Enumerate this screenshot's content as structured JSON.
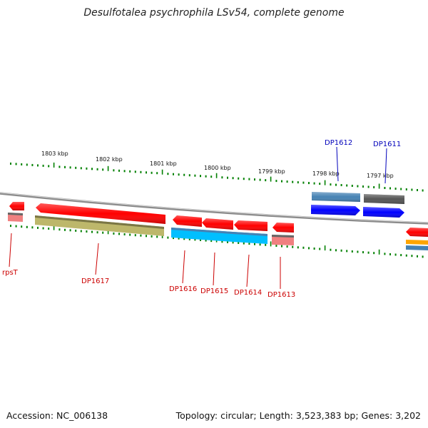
{
  "title": "Desulfotalea psychrophila LSv54, complete genome",
  "accession_text": "Accession: NC_006138",
  "topology_text": "Topology: circular; Length: 3,523,383 bp; Genes: 3,202",
  "colors": {
    "red": "#ff0000",
    "pink": "#f08080",
    "olive": "#bdb76b",
    "cyan": "#00bfff",
    "steel": "#4682b4",
    "blue": "#0000ff",
    "gray": "#555555",
    "orange": "#ffa500",
    "tick_green": "#008000",
    "label_red": "#cc0000",
    "label_blue": "#0000bb"
  },
  "kbp_labels": [
    "1803 kbp",
    "1802 kbp",
    "1801 kbp",
    "1800 kbp",
    "1799 kbp",
    "1798 kbp",
    "1797 kbp"
  ],
  "gene_labels": {
    "rpsT": "rpsT",
    "DP1617": "DP1617",
    "DP1616": "DP1616",
    "DP1615": "DP1615",
    "DP1614": "DP1614",
    "DP1613": "DP1613",
    "DP1612": "DP1612",
    "DP1611": "DP1611"
  }
}
